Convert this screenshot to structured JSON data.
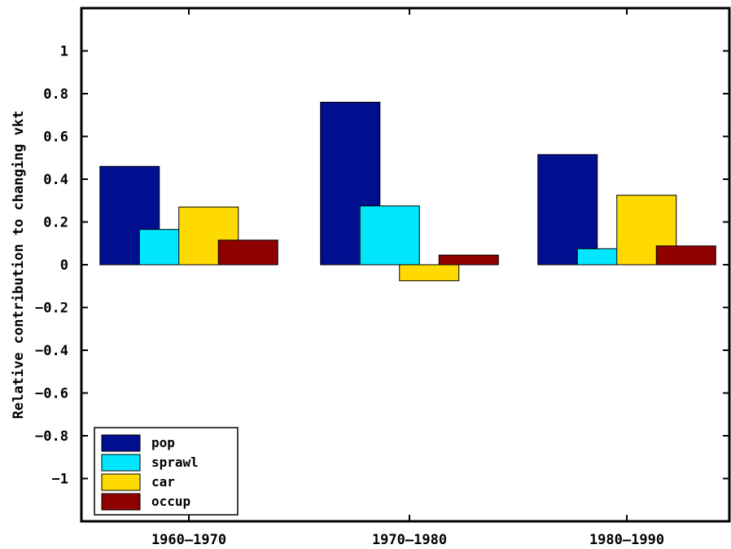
{
  "chart_data": {
    "type": "bar",
    "categories": [
      "1960–1970",
      "1970–1980",
      "1980–1990"
    ],
    "series": [
      {
        "name": "pop",
        "values": [
          0.46,
          0.76,
          0.515
        ],
        "color": "#000f8f"
      },
      {
        "name": "sprawl",
        "values": [
          0.165,
          0.275,
          0.075
        ],
        "color": "#00e6ff"
      },
      {
        "name": "car",
        "values": [
          0.27,
          -0.075,
          0.325
        ],
        "color": "#ffda00"
      },
      {
        "name": "occup",
        "values": [
          0.115,
          0.045,
          0.088
        ],
        "color": "#8f0000"
      }
    ],
    "ylabel": "Relative contribution to changing vkt",
    "xlabel": "",
    "title": "",
    "ylim": [
      -1.2,
      1.2
    ],
    "yticks": [
      1,
      0.8,
      0.6,
      0.4,
      0.2,
      0,
      -0.2,
      -0.4,
      -0.6,
      -0.8,
      -1
    ],
    "ytick_labels": [
      "1",
      "0.8",
      "0.6",
      "0.4",
      "0.2",
      "0",
      "−0.2",
      "−0.4",
      "−0.6",
      "−0.8",
      "−1"
    ],
    "grid": false,
    "legend_position": "bottom-left"
  }
}
